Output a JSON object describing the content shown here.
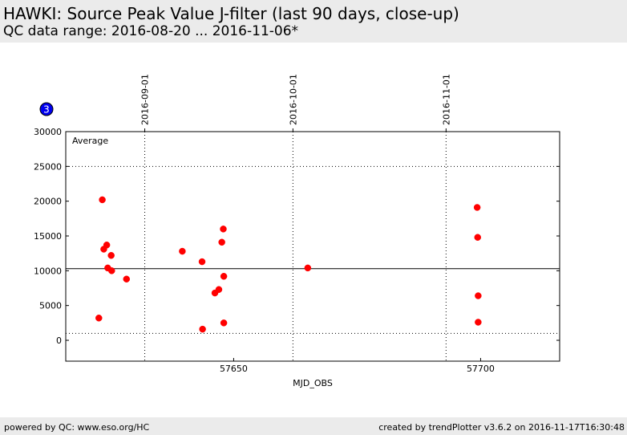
{
  "header": {
    "title": "HAWKI: Source Peak Value J-filter (last 90 days, close-up)",
    "subtitle": "QC data range: 2016-08-20 ... 2016-11-06*"
  },
  "footer": {
    "left": "powered by QC: www.eso.org/HC",
    "right": "created by trendPlotter v3.6.2 on 2016-11-17T16:30:48"
  },
  "badge": {
    "value": "3",
    "color": "#0000ee"
  },
  "chart_data": {
    "type": "scatter",
    "xlabel": "MJD_OBS",
    "ylabel": "",
    "xlim": [
      57616,
      57716
    ],
    "ylim": [
      -3000,
      30000
    ],
    "xticks": [
      57650,
      57700
    ],
    "yticks": [
      0,
      5000,
      10000,
      15000,
      20000,
      25000,
      30000
    ],
    "date_ticks": [
      {
        "mjd": 57632,
        "label": "2016-09-01"
      },
      {
        "mjd": 57662,
        "label": "2016-10-01"
      },
      {
        "mjd": 57693,
        "label": "2016-11-01"
      }
    ],
    "average_label": "Average",
    "average": 10300,
    "reference_lines": [
      25000,
      1000
    ],
    "marker_color": "#ff0000",
    "grid": false,
    "series": [
      {
        "x": [
          57622.7,
          57623.4,
          57623.7,
          57624.3,
          57624.5,
          57625.2,
          57625.3,
          57628.3,
          57639.6,
          57643.6,
          57643.7,
          57646.2,
          57647.0,
          57647.6,
          57647.9,
          57648.0,
          57648.0,
          57665.0,
          57699.3,
          57699.4,
          57699.5,
          57699.5
        ],
        "y": [
          3200,
          20200,
          13100,
          13700,
          10400,
          12200,
          10000,
          8800,
          12800,
          11300,
          1600,
          6800,
          7300,
          14100,
          16000,
          9200,
          2500,
          10400,
          19100,
          14800,
          6400,
          2600
        ]
      }
    ]
  }
}
